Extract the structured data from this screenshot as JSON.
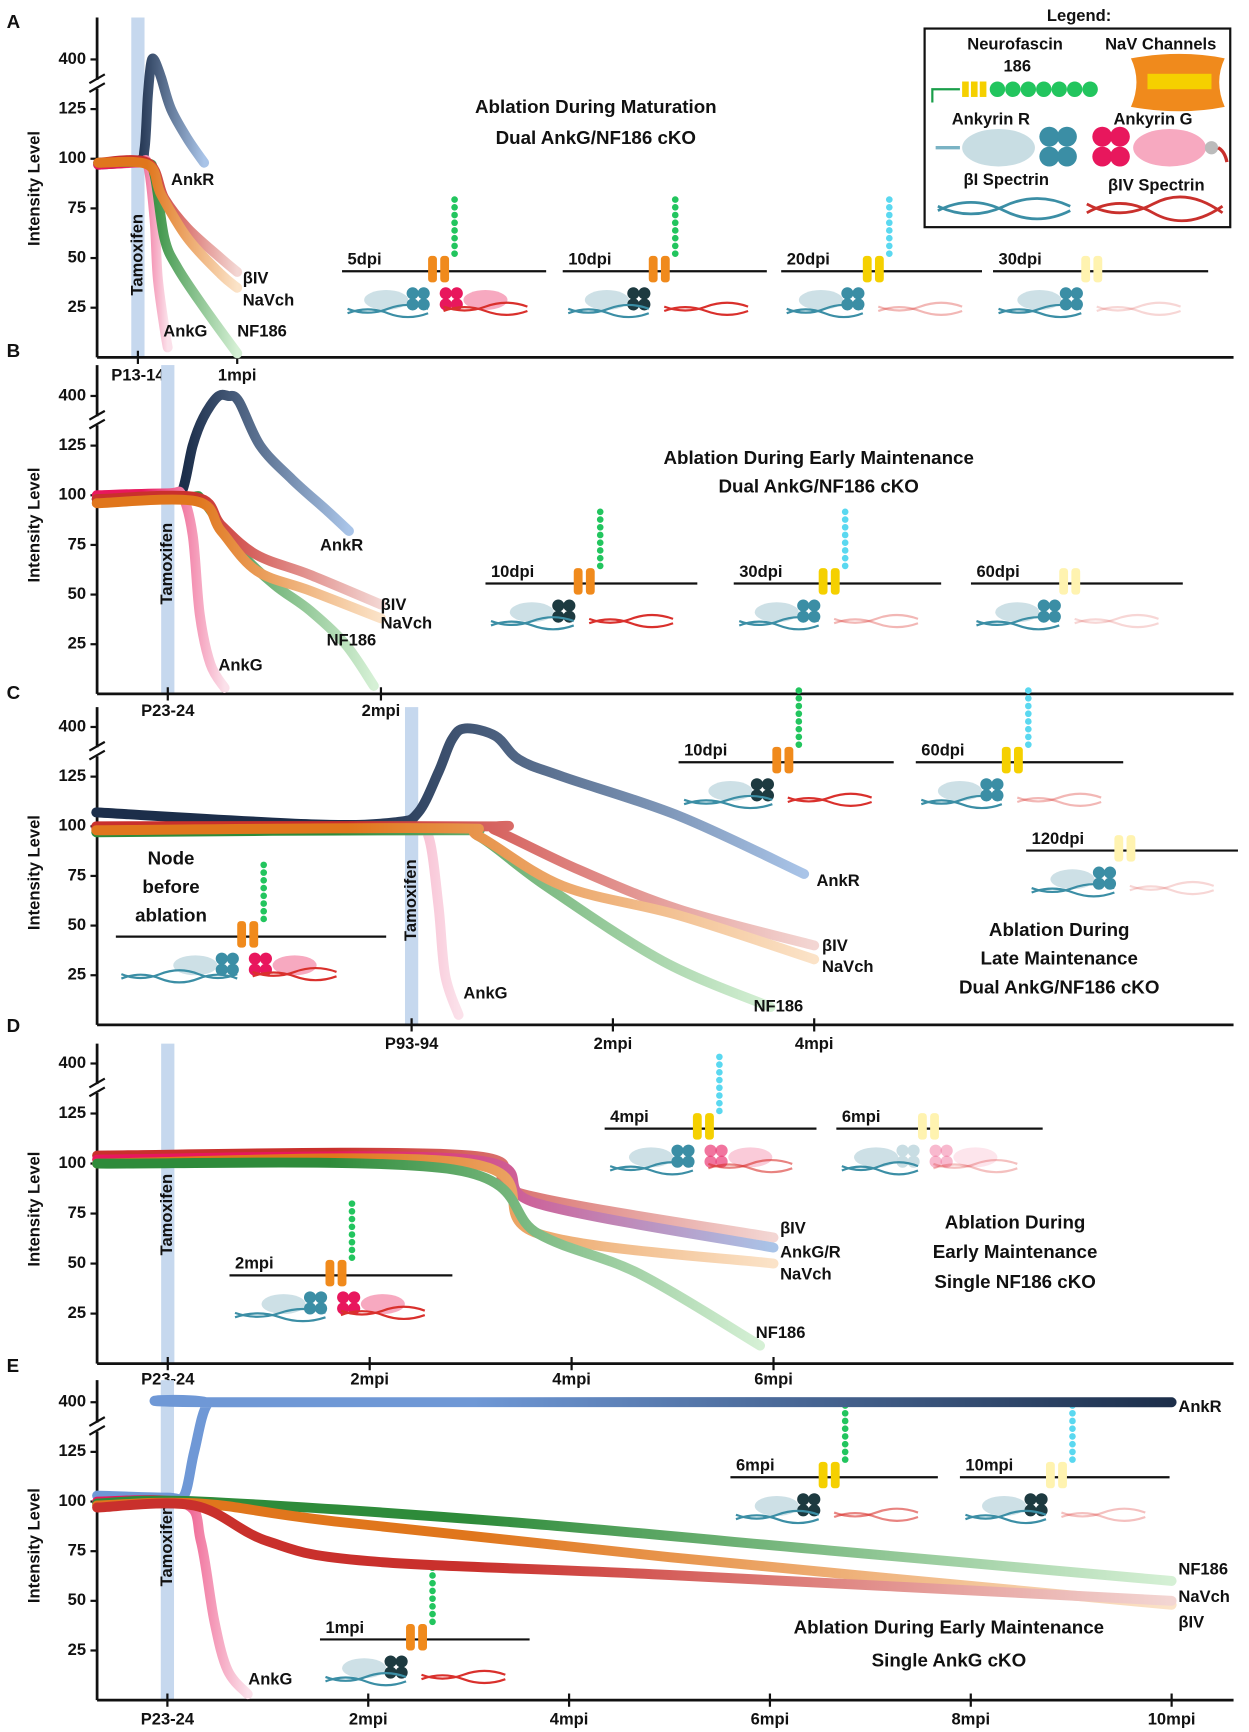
{
  "chart_data": [
    {
      "type": "line",
      "panel_label": "A",
      "title": [
        "Ablation During Maturation",
        "Dual AnkG/NF186 cKO"
      ],
      "ylabel": "Intensity Level",
      "annotation": "Tamoxifen",
      "ylim": [
        0,
        400
      ],
      "y_break": [
        125,
        400
      ],
      "yticks": [
        25,
        50,
        75,
        100,
        125,
        400
      ],
      "xlim": [
        -12.33,
        331
      ],
      "xticks": [
        {
          "value": 0,
          "label": "P13-14"
        },
        {
          "value": 30,
          "label": "1mpi"
        }
      ],
      "series": [
        {
          "name": "AnkR",
          "color": "#1c2e4a",
          "end_color": "#a9c4e8",
          "x": [
            -12,
            0,
            2,
            3,
            4,
            5,
            7,
            10,
            15,
            20
          ],
          "values": [
            97,
            99,
            105,
            200,
            380,
            395,
            300,
            125,
            110,
            98
          ]
        },
        {
          "name": "AnkG",
          "color": "#e8175d",
          "end_color": "#fbe1ea",
          "x": [
            -12,
            0,
            3,
            5,
            6,
            8,
            9
          ],
          "values": [
            97,
            98,
            97,
            70,
            40,
            15,
            5
          ]
        },
        {
          "name": "NF186",
          "color": "#2e8b3a",
          "end_color": "#d5f0d5",
          "x": [
            -12,
            2,
            5,
            8,
            12,
            20,
            30
          ],
          "values": [
            98,
            98,
            92,
            60,
            45,
            25,
            2
          ]
        },
        {
          "name": "βIV",
          "color": "#c9302c",
          "end_color": "#f3d6d3",
          "x": [
            -12,
            3,
            8,
            15,
            25,
            30
          ],
          "values": [
            98,
            98,
            80,
            65,
            50,
            43
          ]
        },
        {
          "name": "NaVch",
          "color": "#e0761c",
          "end_color": "#fbe3c8",
          "x": [
            -12,
            3,
            7,
            15,
            25,
            30
          ],
          "values": [
            98,
            97,
            82,
            60,
            42,
            35
          ]
        }
      ],
      "insets": [
        "5dpi",
        "10dpi",
        "20dpi",
        "30dpi"
      ]
    },
    {
      "type": "line",
      "panel_label": "B",
      "title": [
        "Ablation During Early Maintenance",
        "Dual AnkG/NF186 cKO"
      ],
      "ylabel": "Intensity Level",
      "annotation": "Tamoxifen",
      "ylim": [
        0,
        400
      ],
      "y_break": [
        125,
        400
      ],
      "yticks": [
        25,
        50,
        75,
        100,
        125,
        400
      ],
      "xlim": [
        -19.9,
        300
      ],
      "xticks": [
        {
          "value": 0,
          "label": "P23-24"
        },
        {
          "value": 60,
          "label": "2mpi"
        }
      ],
      "series": [
        {
          "name": "AnkR",
          "color": "#1c2e4a",
          "end_color": "#a9c4e8",
          "x": [
            -20,
            0,
            4,
            7,
            10,
            14,
            17,
            20,
            26,
            35,
            45,
            51
          ],
          "values": [
            98,
            100,
            102,
            125,
            280,
            395,
            400,
            370,
            125,
            108,
            92,
            82
          ]
        },
        {
          "name": "AnkG",
          "color": "#e8175d",
          "end_color": "#fbe1ea",
          "x": [
            -20,
            0,
            4,
            7,
            9,
            12,
            16
          ],
          "values": [
            100,
            101,
            100,
            80,
            40,
            15,
            3
          ]
        },
        {
          "name": "NF186",
          "color": "#2e8b3a",
          "end_color": "#d5f0d5",
          "x": [
            -20,
            5,
            10,
            20,
            30,
            40,
            50,
            58
          ],
          "values": [
            98,
            99,
            97,
            72,
            55,
            42,
            25,
            4
          ]
        },
        {
          "name": "βIV",
          "color": "#c9302c",
          "end_color": "#f3d6d3",
          "x": [
            -20,
            8,
            15,
            25,
            40,
            60
          ],
          "values": [
            98,
            99,
            85,
            70,
            60,
            45
          ]
        },
        {
          "name": "NaVch",
          "color": "#e0761c",
          "end_color": "#fbe3c8",
          "x": [
            -20,
            8,
            15,
            25,
            40,
            60
          ],
          "values": [
            96,
            97,
            82,
            62,
            52,
            38
          ]
        }
      ],
      "insets": [
        "10dpi",
        "30dpi",
        "60dpi"
      ]
    },
    {
      "type": "line",
      "panel_label": "C",
      "title": [
        "Ablation During",
        "Late Maintenance",
        "Dual AnkG/NF186 cKO"
      ],
      "ylabel": "Intensity Level",
      "annotation": "Tamoxifen",
      "ylim": [
        0,
        400
      ],
      "y_break": [
        125,
        400
      ],
      "yticks": [
        25,
        50,
        75,
        100,
        125,
        400
      ],
      "xlim": [
        -93.75,
        245
      ],
      "xticks": [
        {
          "value": 0,
          "label": "P93-94"
        },
        {
          "value": 60,
          "label": "2mpi"
        },
        {
          "value": 120,
          "label": "4mpi"
        }
      ],
      "series": [
        {
          "name": "AnkR",
          "color": "#1c2e4a",
          "end_color": "#a9c4e8",
          "x": [
            -94,
            -30,
            -5,
            2,
            8,
            12,
            16,
            25,
            32,
            45,
            80,
            117
          ],
          "values": [
            107,
            101,
            102,
            107,
            150,
            330,
            392,
            350,
            220,
            125,
            105,
            76
          ]
        },
        {
          "name": "AnkG",
          "color": "#e8175d",
          "end_color": "#fbe1ea",
          "x": [
            -94,
            0,
            5,
            8,
            10,
            14
          ],
          "values": [
            99,
            98,
            95,
            60,
            25,
            5
          ]
        },
        {
          "name": "NF186",
          "color": "#2e8b3a",
          "end_color": "#d5f0d5",
          "x": [
            -94,
            10,
            20,
            40,
            75,
            107
          ],
          "values": [
            97,
            98,
            95,
            70,
            32,
            9
          ]
        },
        {
          "name": "βIV",
          "color": "#c9302c",
          "end_color": "#f3d6d3",
          "x": [
            -94,
            20,
            25,
            50,
            80,
            120
          ],
          "values": [
            100,
            100,
            98,
            78,
            58,
            40
          ]
        },
        {
          "name": "NaVch",
          "color": "#e0761c",
          "end_color": "#fbe3c8",
          "x": [
            -94,
            10,
            20,
            45,
            80,
            120
          ],
          "values": [
            98,
            99,
            95,
            70,
            55,
            33
          ]
        }
      ],
      "insets": [
        "10dpi",
        "60dpi",
        "120dpi"
      ],
      "note": [
        "Node",
        "before",
        "ablation"
      ]
    },
    {
      "type": "line",
      "panel_label": "D",
      "title": [
        "Ablation During",
        "Early Maintenance",
        "Single NF186 cKO"
      ],
      "ylabel": "Intensity Level",
      "annotation": "Tamoxifen",
      "ylim": [
        0,
        400
      ],
      "y_break": [
        125,
        400
      ],
      "yticks": [
        25,
        50,
        75,
        100,
        125,
        400
      ],
      "xlim": [
        -21,
        316.7
      ],
      "xticks": [
        {
          "value": 0,
          "label": "P23-24"
        },
        {
          "value": 60,
          "label": "2mpi"
        },
        {
          "value": 120,
          "label": "4mpi"
        },
        {
          "value": 180,
          "label": "6mpi"
        }
      ],
      "series": [
        {
          "name": "βIV",
          "color": "#c9302c",
          "end_color": "#f3d6d3",
          "x": [
            -21,
            90,
            105,
            180
          ],
          "values": [
            104,
            104,
            85,
            63
          ]
        },
        {
          "name": "AnkG/R",
          "color": "#e8175d",
          "end_color": "#a9c4e8",
          "x": [
            -21,
            90,
            110,
            180
          ],
          "values": [
            102,
            102,
            80,
            58
          ]
        },
        {
          "name": "NaVch",
          "color": "#e0761c",
          "end_color": "#fbe3c8",
          "x": [
            -21,
            90,
            110,
            180
          ],
          "values": [
            100,
            100,
            65,
            50
          ]
        },
        {
          "name": "NF186",
          "color": "#2e8b3a",
          "end_color": "#d5f0d5",
          "x": [
            -21,
            85,
            110,
            140,
            176
          ],
          "values": [
            100,
            97,
            65,
            45,
            9
          ]
        }
      ],
      "insets": [
        "4mpi",
        "6mpi",
        "2mpi"
      ]
    },
    {
      "type": "line",
      "panel_label": "E",
      "title": [
        "Ablation During Early Maintenance",
        "Single AnkG cKO"
      ],
      "ylabel": "Intensity Level",
      "annotation": "Tamoxifen",
      "ylim": [
        0,
        400
      ],
      "y_break": [
        125,
        400
      ],
      "yticks": [
        25,
        50,
        75,
        100,
        125,
        400
      ],
      "xlim": [
        -21,
        318.5
      ],
      "xticks": [
        {
          "value": 0,
          "label": "P23-24"
        },
        {
          "value": 60,
          "label": "2mpi"
        },
        {
          "value": 120,
          "label": "4mpi"
        },
        {
          "value": 180,
          "label": "6mpi"
        },
        {
          "value": 240,
          "label": "8mpi"
        },
        {
          "value": 300,
          "label": "10mpi"
        }
      ],
      "series": [
        {
          "name": "AnkR",
          "color": "#6f98d6",
          "end_color": "#1c2e4a",
          "x": [
            -21,
            0,
            5,
            8,
            12,
            19,
            300
          ],
          "values": [
            103,
            102,
            103,
            125,
            390,
            400,
            400
          ]
        },
        {
          "name": "AnkG",
          "color": "#e8175d",
          "end_color": "#fbe1ea",
          "x": [
            -21,
            5,
            10,
            14,
            18,
            24
          ],
          "values": [
            100,
            99,
            80,
            40,
            15,
            3
          ]
        },
        {
          "name": "NF186",
          "color": "#2e8b3a",
          "end_color": "#d5f0d5",
          "x": [
            -21,
            10,
            100,
            200,
            300
          ],
          "values": [
            99,
            100,
            90,
            75,
            60
          ]
        },
        {
          "name": "NaVch",
          "color": "#e0761c",
          "end_color": "#fbe3c8",
          "x": [
            -21,
            10,
            50,
            150,
            300
          ],
          "values": [
            98,
            99,
            90,
            72,
            48
          ]
        },
        {
          "name": "βIV",
          "color": "#c9302c",
          "end_color": "#f3d6d3",
          "x": [
            -21,
            8,
            30,
            60,
            150,
            300
          ],
          "values": [
            97,
            98,
            80,
            70,
            63,
            50
          ]
        }
      ],
      "insets": [
        "6mpi",
        "10mpi",
        "1mpi"
      ]
    }
  ],
  "legend_box": {
    "title": "Legend:",
    "neurofascin": [
      "Neurofascin",
      "186"
    ],
    "nav": "NaV Channels",
    "ankyrin_r": "Ankyrin R",
    "ankyrin_g": "Ankyrin G",
    "bi_spectrin": "βI Spectrin",
    "biv_spectrin": "βIV Spectrin"
  }
}
